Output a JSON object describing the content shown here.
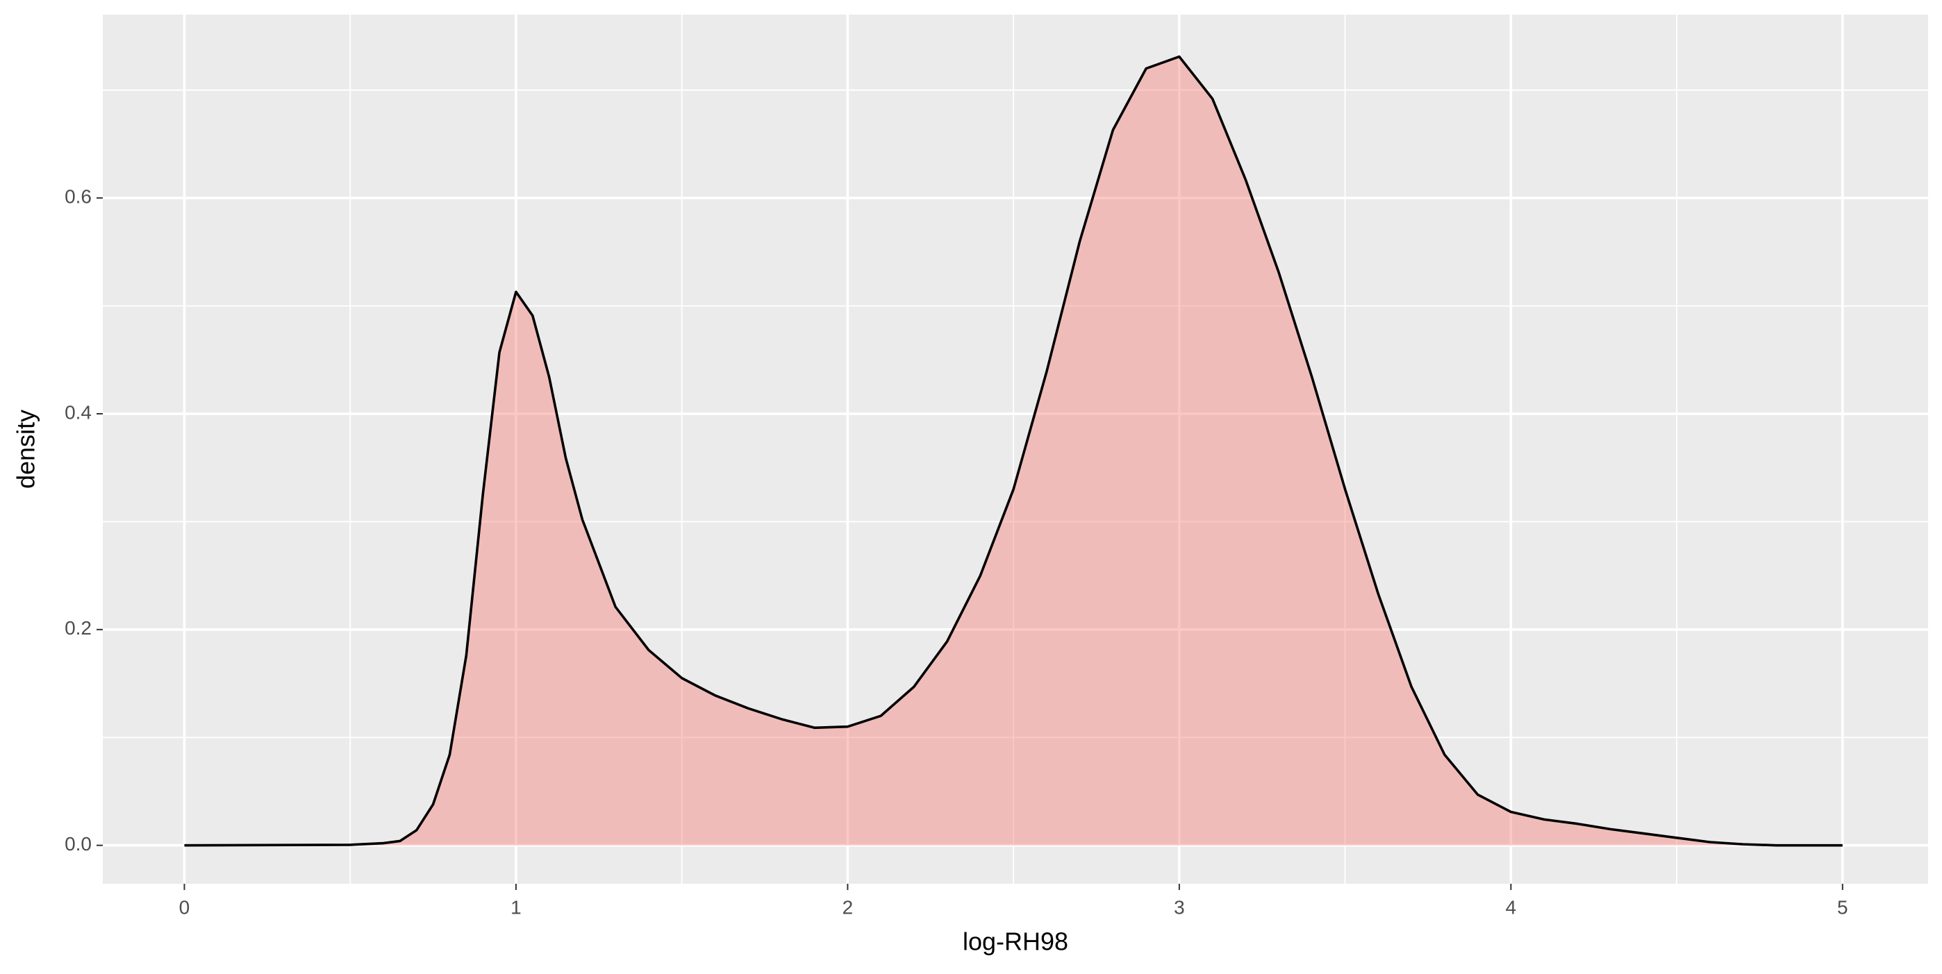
{
  "chart_data": {
    "type": "density",
    "x_label": "log-RH98",
    "y_label": "density",
    "x": [
      0,
      0.5,
      0.6,
      0.65,
      0.7,
      0.75,
      0.8,
      0.85,
      0.9,
      0.95,
      1.0,
      1.05,
      1.1,
      1.15,
      1.2,
      1.3,
      1.4,
      1.5,
      1.6,
      1.7,
      1.8,
      1.9,
      2.0,
      2.1,
      2.2,
      2.3,
      2.4,
      2.5,
      2.6,
      2.7,
      2.8,
      2.9,
      3.0,
      3.1,
      3.2,
      3.3,
      3.4,
      3.5,
      3.6,
      3.7,
      3.8,
      3.9,
      4.0,
      4.1,
      4.2,
      4.3,
      4.4,
      4.5,
      4.6,
      4.7,
      4.8,
      5.0
    ],
    "values": [
      0,
      0.0005,
      0.002,
      0.004,
      0.014,
      0.038,
      0.084,
      0.176,
      0.325,
      0.457,
      0.513,
      0.491,
      0.434,
      0.359,
      0.302,
      0.221,
      0.181,
      0.155,
      0.139,
      0.127,
      0.117,
      0.109,
      0.11,
      0.12,
      0.147,
      0.189,
      0.25,
      0.33,
      0.439,
      0.56,
      0.663,
      0.72,
      0.731,
      0.692,
      0.617,
      0.531,
      0.434,
      0.33,
      0.233,
      0.147,
      0.084,
      0.047,
      0.031,
      0.024,
      0.02,
      0.015,
      0.011,
      0.007,
      0.003,
      0.001,
      0,
      0
    ],
    "color": "#f8766d",
    "fill_opacity": 0.4,
    "line_color": "#000000",
    "xlim": [
      -0.246,
      5.258
    ],
    "xticks": [
      0,
      1,
      2,
      3,
      4,
      5
    ],
    "ylim": [
      -0.0356,
      0.77
    ],
    "yticks": [
      {
        "value": 0,
        "label": "0.0"
      },
      0.2,
      0.4,
      0.6
    ],
    "grid": true
  }
}
